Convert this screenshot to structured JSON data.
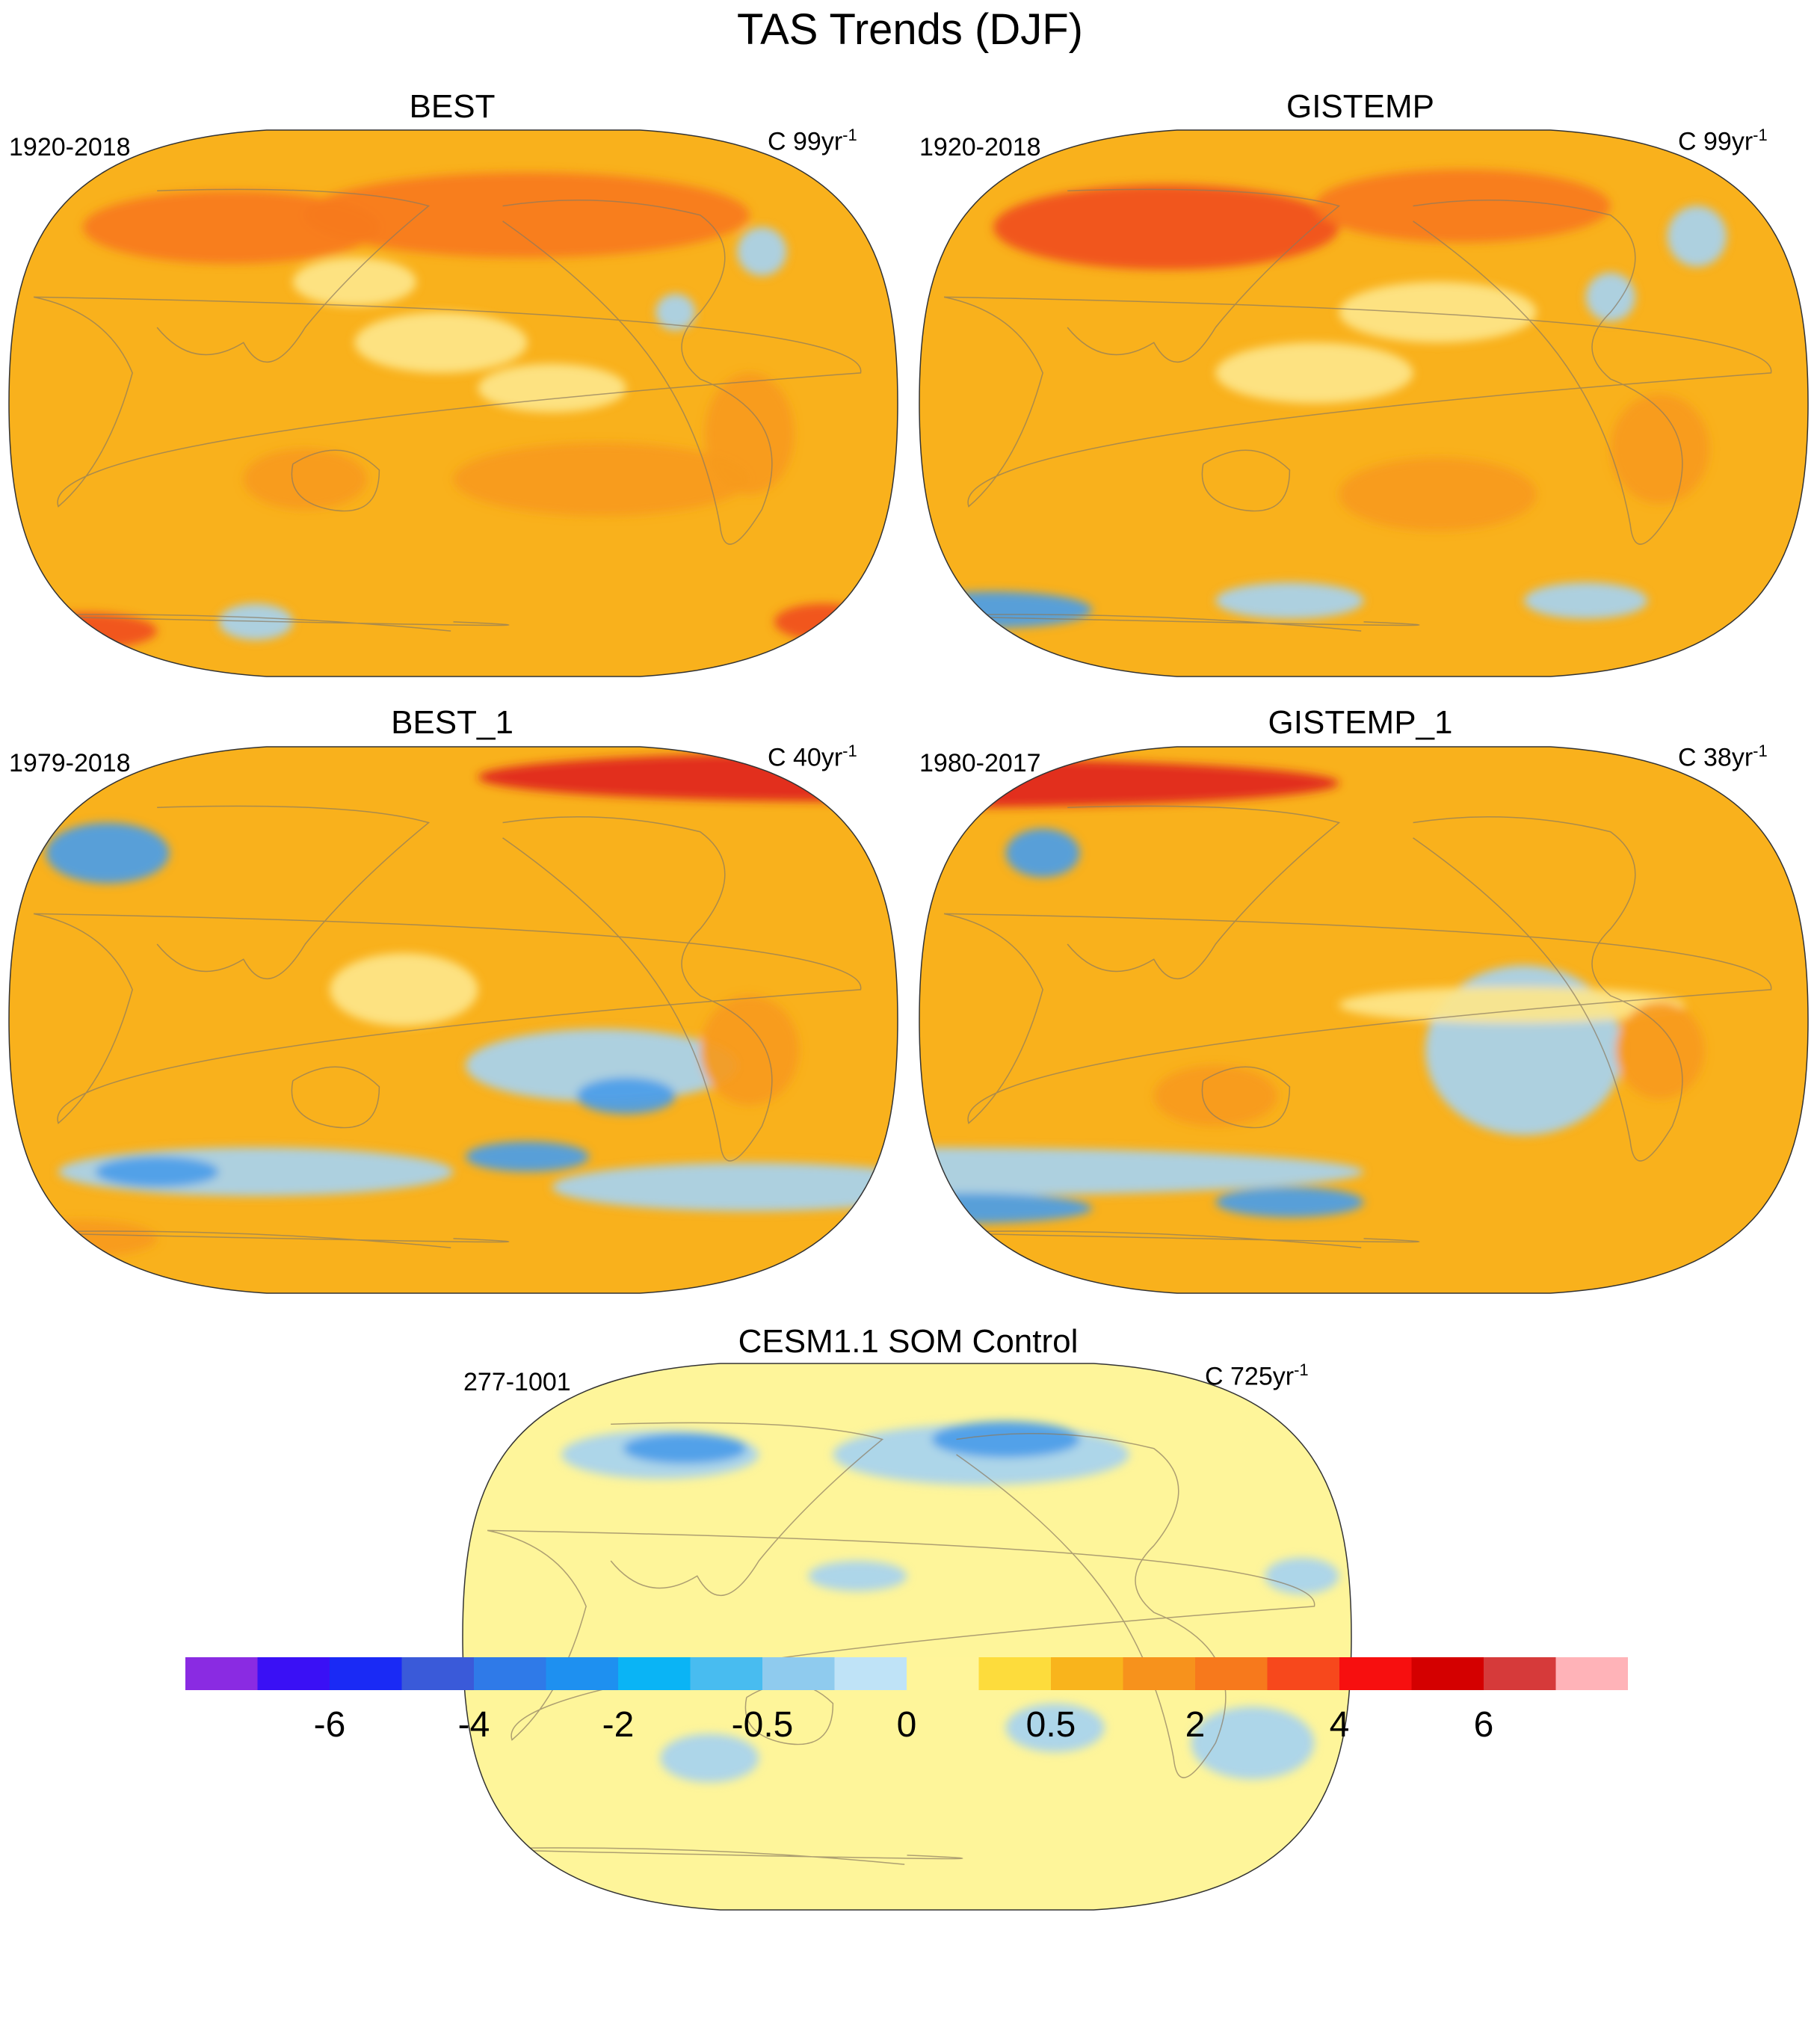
{
  "title": "TAS Trends (DJF)",
  "panels": [
    {
      "title": "BEST",
      "range": "1920-2018",
      "units_prefix": "C 99yr",
      "units_exp": "-1",
      "base": "#f9b11c",
      "patches": [
        {
          "lon": -150,
          "lat": 62,
          "rx": 90,
          "ry": 14,
          "color": "#f7791c"
        },
        {
          "lon": 90,
          "lat": 58,
          "rx": 60,
          "ry": 12,
          "color": "#f7791c"
        },
        {
          "lon": -55,
          "lat": 50,
          "rx": 10,
          "ry": 8,
          "color": "#a6d3f0"
        },
        {
          "lon": -90,
          "lat": 30,
          "rx": 8,
          "ry": 6,
          "color": "#a6d3f0"
        },
        {
          "lon": 175,
          "lat": 20,
          "rx": 35,
          "ry": 10,
          "color": "#fde68a"
        },
        {
          "lon": -140,
          "lat": 5,
          "rx": 30,
          "ry": 8,
          "color": "#fde68a"
        },
        {
          "lon": 140,
          "lat": 40,
          "rx": 25,
          "ry": 8,
          "color": "#fde68a"
        },
        {
          "lon": -120,
          "lat": -25,
          "rx": 60,
          "ry": 12,
          "color": "#f79a1c"
        },
        {
          "lon": 120,
          "lat": -25,
          "rx": 25,
          "ry": 10,
          "color": "#f79a1c"
        },
        {
          "lon": -60,
          "lat": -10,
          "rx": 18,
          "ry": 20,
          "color": "#f79a1c"
        },
        {
          "lon": 30,
          "lat": -75,
          "rx": 30,
          "ry": 6,
          "color": "#f04e1e"
        },
        {
          "lon": -30,
          "lat": -72,
          "rx": 20,
          "ry": 6,
          "color": "#f04e1e"
        },
        {
          "lon": 100,
          "lat": -72,
          "rx": 15,
          "ry": 6,
          "color": "#a6d3f0"
        }
      ]
    },
    {
      "title": "GISTEMP",
      "range": "1920-2018",
      "units_prefix": "C 99yr",
      "units_exp": "-1",
      "base": "#f9b11c",
      "patches": [
        {
          "lon": 100,
          "lat": 58,
          "rx": 70,
          "ry": 14,
          "color": "#f04e1e"
        },
        {
          "lon": -140,
          "lat": 65,
          "rx": 60,
          "ry": 12,
          "color": "#f7791c"
        },
        {
          "lon": -45,
          "lat": 55,
          "rx": 12,
          "ry": 10,
          "color": "#a6d3f0"
        },
        {
          "lon": -80,
          "lat": 35,
          "rx": 10,
          "ry": 8,
          "color": "#a6d3f0"
        },
        {
          "lon": -150,
          "lat": 30,
          "rx": 40,
          "ry": 10,
          "color": "#fde68a"
        },
        {
          "lon": 160,
          "lat": 10,
          "rx": 40,
          "ry": 10,
          "color": "#fde68a"
        },
        {
          "lon": -60,
          "lat": -15,
          "rx": 20,
          "ry": 18,
          "color": "#f79a1c"
        },
        {
          "lon": -150,
          "lat": -30,
          "rx": 40,
          "ry": 12,
          "color": "#f79a1c"
        },
        {
          "lon": 30,
          "lat": -68,
          "rx": 40,
          "ry": 6,
          "color": "#4a9de8"
        },
        {
          "lon": -90,
          "lat": -65,
          "rx": 25,
          "ry": 6,
          "color": "#a6d3f0"
        },
        {
          "lon": 150,
          "lat": -65,
          "rx": 30,
          "ry": 6,
          "color": "#a6d3f0"
        }
      ]
    },
    {
      "title": "BEST_1",
      "range": "1979-2018",
      "units_prefix": "C 40yr",
      "units_exp": "-1",
      "base": "#f9b11c",
      "patches": [
        {
          "lon": -20,
          "lat": 80,
          "rx": 150,
          "ry": 8,
          "color": "#e0241c"
        },
        {
          "lon": 40,
          "lat": 55,
          "rx": 25,
          "ry": 10,
          "color": "#4a9de8"
        },
        {
          "lon": -120,
          "lat": -15,
          "rx": 55,
          "ry": 12,
          "color": "#a6d3f0"
        },
        {
          "lon": -110,
          "lat": -25,
          "rx": 20,
          "ry": 6,
          "color": "#4a9de8"
        },
        {
          "lon": 100,
          "lat": -50,
          "rx": 80,
          "ry": 8,
          "color": "#a6d3f0"
        },
        {
          "lon": -60,
          "lat": -55,
          "rx": 80,
          "ry": 8,
          "color": "#a6d3f0"
        },
        {
          "lon": -150,
          "lat": -45,
          "rx": 25,
          "ry": 5,
          "color": "#4a9de8"
        },
        {
          "lon": 60,
          "lat": -50,
          "rx": 25,
          "ry": 5,
          "color": "#4a9de8"
        },
        {
          "lon": 160,
          "lat": 10,
          "rx": 30,
          "ry": 12,
          "color": "#fde68a"
        },
        {
          "lon": -60,
          "lat": -10,
          "rx": 20,
          "ry": 18,
          "color": "#f79a1c"
        },
        {
          "lon": 30,
          "lat": -72,
          "rx": 30,
          "ry": 6,
          "color": "#f79a1c"
        }
      ]
    },
    {
      "title": "GISTEMP_1",
      "range": "1980-2017",
      "units_prefix": "C 38yr",
      "units_exp": "-1",
      "base": "#f9b11c",
      "patches": [
        {
          "lon": 0,
          "lat": 78,
          "rx": 170,
          "ry": 8,
          "color": "#e0241c"
        },
        {
          "lon": 50,
          "lat": 55,
          "rx": 15,
          "ry": 8,
          "color": "#4a9de8"
        },
        {
          "lon": -115,
          "lat": -10,
          "rx": 40,
          "ry": 28,
          "color": "#a6d3f0"
        },
        {
          "lon": -120,
          "lat": 5,
          "rx": 70,
          "ry": 6,
          "color": "#fde68a"
        },
        {
          "lon": 0,
          "lat": -50,
          "rx": 180,
          "ry": 8,
          "color": "#a6d3f0"
        },
        {
          "lon": 20,
          "lat": -62,
          "rx": 50,
          "ry": 5,
          "color": "#4a9de8"
        },
        {
          "lon": 150,
          "lat": -60,
          "rx": 30,
          "ry": 5,
          "color": "#4a9de8"
        },
        {
          "lon": -60,
          "lat": -10,
          "rx": 18,
          "ry": 16,
          "color": "#f79a1c"
        },
        {
          "lon": 120,
          "lat": -25,
          "rx": 25,
          "ry": 10,
          "color": "#f79a1c"
        }
      ]
    },
    {
      "title": "CESM1.1 SOM Control",
      "range": "277-1001",
      "units_prefix": "C 725yr",
      "units_exp": "-1",
      "base": "#fef59a",
      "patches": [
        {
          "lon": -150,
          "lat": 60,
          "rx": 60,
          "ry": 10,
          "color": "#a6d3f0"
        },
        {
          "lon": 80,
          "lat": 60,
          "rx": 40,
          "ry": 8,
          "color": "#a6d3f0"
        },
        {
          "lon": -140,
          "lat": 65,
          "rx": 30,
          "ry": 6,
          "color": "#4a9de8"
        },
        {
          "lon": 90,
          "lat": 62,
          "rx": 25,
          "ry": 5,
          "color": "#4a9de8"
        },
        {
          "lon": -120,
          "lat": -30,
          "rx": 20,
          "ry": 8,
          "color": "#a6d3f0"
        },
        {
          "lon": -40,
          "lat": -35,
          "rx": 25,
          "ry": 12,
          "color": "#a6d3f0"
        },
        {
          "lon": 100,
          "lat": -40,
          "rx": 20,
          "ry": 8,
          "color": "#a6d3f0"
        },
        {
          "lon": 160,
          "lat": 20,
          "rx": 20,
          "ry": 5,
          "color": "#a6d3f0"
        },
        {
          "lon": -20,
          "lat": 20,
          "rx": 15,
          "ry": 6,
          "color": "#a6d3f0"
        }
      ]
    }
  ],
  "colorbar": {
    "colors": [
      "#8a2be2",
      "#3a10f5",
      "#1a2af5",
      "#3a5ad9",
      "#2f7ae8",
      "#1e90f0",
      "#0ab4f5",
      "#48bcf0",
      "#8fcbee",
      "#bfe3f7",
      "#fff59a",
      "#fddc3c",
      "#f9b41c",
      "#f7921c",
      "#f7791c",
      "#f7481c",
      "#f70f0f",
      "#d40000",
      "#d63a3a",
      "#ffb3b8"
    ],
    "labels": [
      "-6",
      "-4",
      "-2",
      "-0.5",
      "0",
      "0.5",
      "2",
      "4",
      "6"
    ]
  }
}
